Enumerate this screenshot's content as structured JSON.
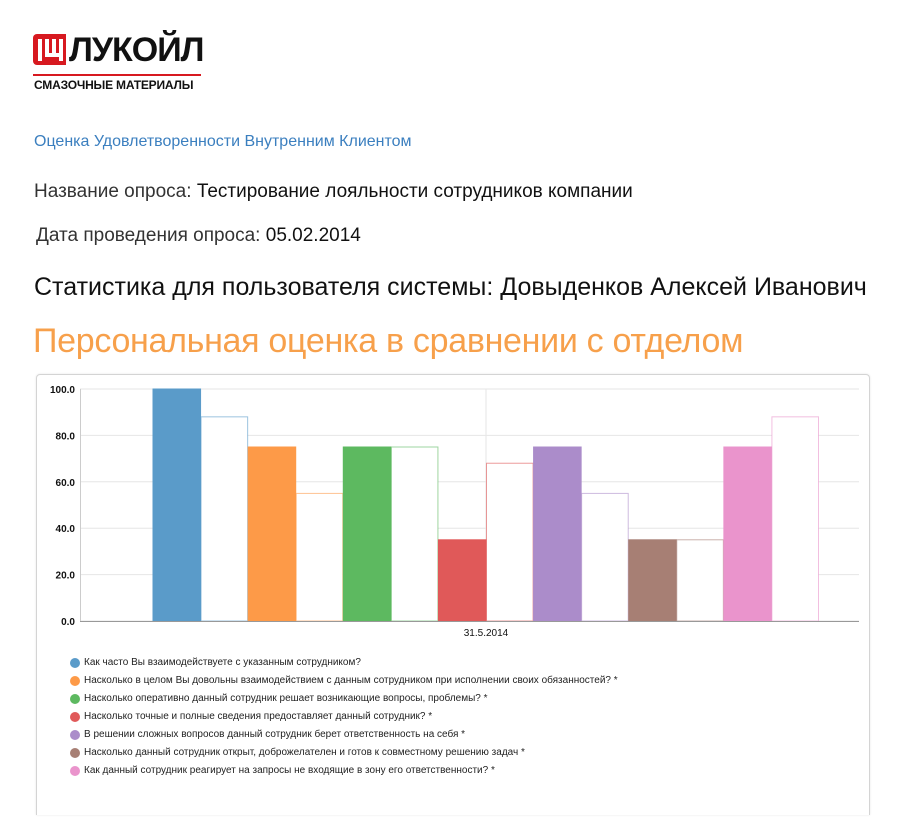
{
  "logo": {
    "wordmark": "ЛУКОЙЛ",
    "subtitle": "СМАЗОЧНЫЕ МАТЕРИАЛЫ",
    "brand_color": "#d71920"
  },
  "survey_title": "Оценка Удовлетворенности Внутренним Клиентом",
  "poll": {
    "name_label": "Название опроса:",
    "name_value": "Тестирование лояльности сотрудников компании",
    "date_label": "Дата проведения опроса:",
    "date_value": "05.02.2014"
  },
  "user_line": "Статистика для пользователя системы: Довыденков Алексей Иванович",
  "section_title": "Персональная оценка в сравнении с отделом",
  "chart_data": {
    "type": "bar",
    "categories": [
      "31.5.2014"
    ],
    "ylim": [
      0,
      100
    ],
    "yticks": [
      "0.0",
      "20.0",
      "40.0",
      "60.0",
      "80.0",
      "100.0"
    ],
    "grid": true,
    "legend_position": "bottom",
    "series": [
      {
        "name": "Как часто Вы взаимодействуете с указанным сотрудником?",
        "color": "#5a9bc9",
        "personal": 100,
        "department": 88
      },
      {
        "name": "Насколько в целом Вы довольны взаимодействием с данным сотрудником при исполнении своих обязанностей? *",
        "color": "#fd9a48",
        "personal": 75,
        "department": 55
      },
      {
        "name": "Насколько оперативно данный сотрудник решает возникающие вопросы, проблемы? *",
        "color": "#5db960",
        "personal": 75,
        "department": 75
      },
      {
        "name": "Насколько точные и полные сведения предоставляет данный сотрудник? *",
        "color": "#e05959",
        "personal": 35,
        "department": 68
      },
      {
        "name": "В решении сложных вопросов данный сотрудник берет ответственность на себя *",
        "color": "#ab8cca",
        "personal": 75,
        "department": 55
      },
      {
        "name": "Насколько данный сотрудник открыт, доброжелателен и готов к совместному решению задач *",
        "color": "#a77f74",
        "personal": 35,
        "department": 35
      },
      {
        "name": "Как данный сотрудник реагирует на запросы не входящие в зону его ответственности? *",
        "color": "#ea94cc",
        "personal": 75,
        "department": 88
      }
    ]
  }
}
